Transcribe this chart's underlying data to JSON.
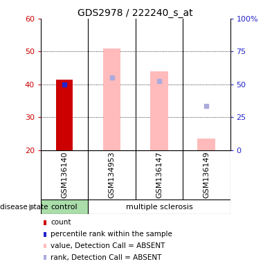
{
  "title": "GDS2978 / 222240_s_at",
  "samples": [
    "GSM136140",
    "GSM134953",
    "GSM136147",
    "GSM136149"
  ],
  "groups": [
    "control",
    "multiple sclerosis",
    "multiple sclerosis",
    "multiple sclerosis"
  ],
  "ylim_left": [
    20,
    60
  ],
  "ylim_right": [
    0,
    100
  ],
  "yticks_left": [
    20,
    30,
    40,
    50,
    60
  ],
  "yticks_right": [
    0,
    25,
    50,
    75,
    100
  ],
  "bar_data": {
    "count_value": [
      41.5,
      null,
      null,
      null
    ],
    "count_color": "#cc0000",
    "percentile_value": [
      40.0,
      null,
      null,
      null
    ],
    "percentile_color": "#2222cc",
    "absent_value_bar": [
      null,
      51.0,
      44.0,
      23.5
    ],
    "absent_value_base": [
      null,
      20,
      20,
      20
    ],
    "absent_value_color": "#ffbbbb",
    "absent_rank_marker": [
      null,
      42.0,
      41.0,
      33.5
    ],
    "absent_rank_color": "#aaaadd"
  },
  "group_colors": {
    "control": "#aaddaa",
    "multiple sclerosis": "#66dd66"
  },
  "background_color": "#ffffff",
  "label_bg": "#cccccc",
  "left_axis_color": "#cc0000",
  "right_axis_color": "#2222cc",
  "legend": [
    {
      "label": "count",
      "color": "#cc0000"
    },
    {
      "label": "percentile rank within the sample",
      "color": "#2222cc"
    },
    {
      "label": "value, Detection Call = ABSENT",
      "color": "#ffbbbb"
    },
    {
      "label": "rank, Detection Call = ABSENT",
      "color": "#aaaadd"
    }
  ],
  "bar_width": 0.35,
  "absent_bar_width": 0.38
}
